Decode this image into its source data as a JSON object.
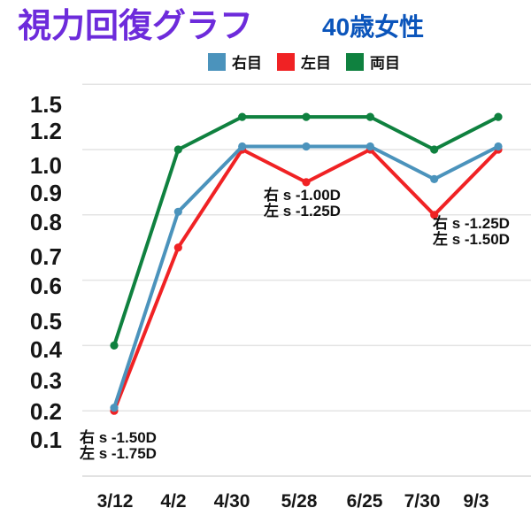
{
  "colors": {
    "background": "#FFFFFF",
    "title": "#6D2BDB",
    "subtitle": "#0B55BB",
    "tick_text": "#161616",
    "annotation_text": "#111111",
    "grid": "#E4E4E4",
    "axis_line": "#D8D8D8"
  },
  "chart_data": {
    "type": "line",
    "title": "視力回復グラフ",
    "subtitle": "40歳女性",
    "categories": [
      "3/12",
      "4/2",
      "4/30",
      "5/28",
      "6/25",
      "7/30",
      "9/3"
    ],
    "y_tick_labels": [
      "1.5",
      "1.2",
      "1.0",
      "0.9",
      "0.8",
      "0.7",
      "0.6",
      "0.5",
      "0.4",
      "0.3",
      "0.2",
      "0.1"
    ],
    "y_scale_values": [
      0.1,
      0.2,
      0.3,
      0.4,
      0.5,
      0.6,
      0.7,
      0.8,
      0.9,
      1.0,
      1.2,
      1.5
    ],
    "y_scale_type": "ordinal-decimal-visual-acuity",
    "grid": "horizontal-only",
    "gridline_values": [
      1.5,
      1.0,
      0.8,
      0.6,
      0.4,
      0.2
    ],
    "legend_position": "top",
    "series": [
      {
        "name": "右目",
        "color": "#4B93BC",
        "values": [
          0.2,
          0.8,
          1.0,
          1.0,
          1.0,
          0.9,
          1.0
        ]
      },
      {
        "name": "左目",
        "color": "#F02224",
        "values": [
          0.2,
          0.7,
          1.0,
          0.9,
          1.0,
          0.8,
          1.0
        ]
      },
      {
        "name": "両目",
        "color": "#0F813F",
        "values": [
          0.4,
          1.0,
          1.2,
          1.2,
          1.2,
          1.0,
          1.2
        ]
      }
    ],
    "annotations": [
      {
        "line1": "右 s -1.50D",
        "line2": "左 s -1.75D"
      },
      {
        "line1": "右 s -1.00D",
        "line2": "左 s -1.25D"
      },
      {
        "line1": "右 s -1.25D",
        "line2": "左 s -1.50D"
      }
    ]
  }
}
